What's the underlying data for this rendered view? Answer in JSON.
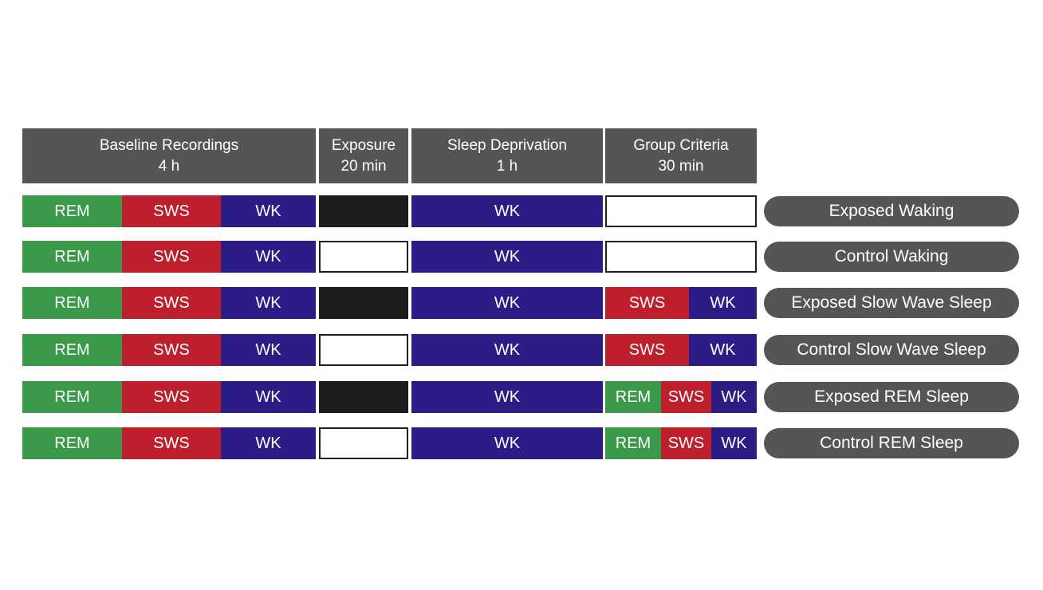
{
  "headers": {
    "baseline": {
      "title": "Baseline Recordings",
      "duration": "4 h"
    },
    "exposure": {
      "title": "Exposure",
      "duration": "20 min"
    },
    "deprivation": {
      "title": "Sleep Deprivation",
      "duration": "1 h"
    },
    "criteria": {
      "title": "Group Criteria",
      "duration": "30 min"
    }
  },
  "labels": {
    "rem": "REM",
    "sws": "SWS",
    "wk": "WK"
  },
  "colors": {
    "rem": "#3a9a49",
    "sws": "#bd1f2d",
    "wk": "#2b1d85",
    "exposed_block": "#1e1b1c",
    "header": "#555555"
  },
  "groups": [
    {
      "name": "Exposed Waking",
      "exposure": "exposed",
      "criteria": "none"
    },
    {
      "name": "Control Waking",
      "exposure": "control",
      "criteria": "none"
    },
    {
      "name": "Exposed Slow Wave Sleep",
      "exposure": "exposed",
      "criteria": "sws_wk"
    },
    {
      "name": "Control Slow Wave Sleep",
      "exposure": "control",
      "criteria": "sws_wk"
    },
    {
      "name": "Exposed REM Sleep",
      "exposure": "exposed",
      "criteria": "rem_sws_wk"
    },
    {
      "name": "Control REM Sleep",
      "exposure": "control",
      "criteria": "rem_sws_wk"
    }
  ]
}
